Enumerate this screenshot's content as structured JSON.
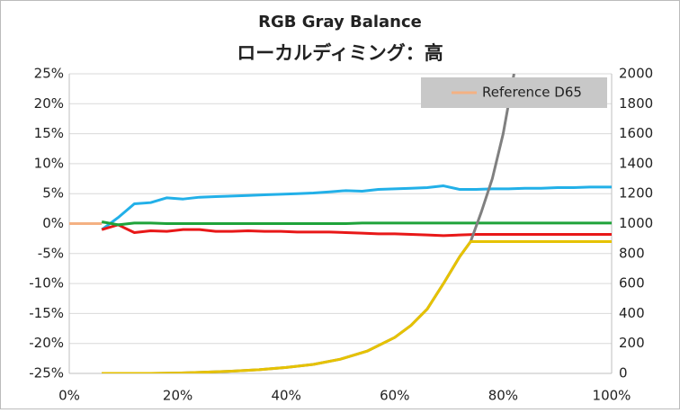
{
  "chart_data": {
    "type": "line",
    "title": "RGB Gray Balance",
    "subtitle": "ローカルディミング：高",
    "xlim": [
      0,
      100
    ],
    "xticks": [
      {
        "value": 0,
        "label": "0%"
      },
      {
        "value": 20,
        "label": "20%"
      },
      {
        "value": 40,
        "label": "40%"
      },
      {
        "value": 60,
        "label": "60%"
      },
      {
        "value": 80,
        "label": "80%"
      },
      {
        "value": 100,
        "label": "100%"
      }
    ],
    "ylim": [
      -25,
      25
    ],
    "yticks": [
      {
        "value": -25,
        "label": "-25%"
      },
      {
        "value": -20,
        "label": "-20%"
      },
      {
        "value": -15,
        "label": "-15%"
      },
      {
        "value": -10,
        "label": "-10%"
      },
      {
        "value": -5,
        "label": "-5%"
      },
      {
        "value": 0,
        "label": "0%"
      },
      {
        "value": 5,
        "label": "5%"
      },
      {
        "value": 10,
        "label": "10%"
      },
      {
        "value": 15,
        "label": "15%"
      },
      {
        "value": 20,
        "label": "20%"
      },
      {
        "value": 25,
        "label": "25%"
      }
    ],
    "y2lim": [
      0,
      2000
    ],
    "y2ticks": [
      0,
      200,
      400,
      600,
      800,
      1000,
      1200,
      1400,
      1600,
      1800,
      2000
    ],
    "grid": true,
    "legend": "top-right",
    "series": [
      {
        "name": "Reference D65",
        "color": "#f4b183",
        "x": [
          0,
          6
        ],
        "values": [
          0,
          0
        ]
      },
      {
        "color": "#22b0e8",
        "x": [
          6,
          9,
          12,
          15,
          18,
          21,
          24,
          27,
          30,
          33,
          36,
          39,
          42,
          45,
          48,
          51,
          54,
          57,
          60,
          63,
          66,
          69,
          72,
          75,
          78,
          81,
          84,
          87,
          90,
          93,
          96,
          100
        ],
        "values": [
          -1.0,
          1.0,
          3.3,
          3.5,
          4.3,
          4.1,
          4.4,
          4.5,
          4.6,
          4.7,
          4.8,
          4.9,
          5.0,
          5.1,
          5.3,
          5.5,
          5.4,
          5.7,
          5.8,
          5.9,
          6.0,
          6.3,
          5.7,
          5.7,
          5.8,
          5.8,
          5.9,
          5.9,
          6.0,
          6.0,
          6.1,
          6.1
        ]
      },
      {
        "color": "#e81818",
        "x": [
          6,
          9,
          12,
          15,
          18,
          21,
          24,
          27,
          30,
          33,
          36,
          39,
          42,
          45,
          48,
          51,
          54,
          57,
          60,
          63,
          66,
          69,
          72,
          75,
          78,
          81,
          84,
          87,
          90,
          93,
          96,
          100
        ],
        "values": [
          -1.0,
          -0.2,
          -1.5,
          -1.2,
          -1.3,
          -1.0,
          -1.0,
          -1.3,
          -1.3,
          -1.2,
          -1.3,
          -1.3,
          -1.4,
          -1.4,
          -1.4,
          -1.5,
          -1.6,
          -1.7,
          -1.7,
          -1.8,
          -1.9,
          -2.0,
          -1.9,
          -1.8,
          -1.8,
          -1.8,
          -1.8,
          -1.8,
          -1.8,
          -1.8,
          -1.8,
          -1.8
        ]
      },
      {
        "color": "#1fa33a",
        "x": [
          6,
          9,
          12,
          15,
          18,
          21,
          24,
          27,
          30,
          33,
          36,
          39,
          42,
          45,
          48,
          51,
          54,
          57,
          60,
          63,
          66,
          69,
          72,
          75,
          78,
          81,
          84,
          87,
          90,
          93,
          96,
          100
        ],
        "values": [
          0.3,
          -0.2,
          0.1,
          0.1,
          0,
          0,
          0,
          0,
          0,
          0,
          0,
          0,
          0,
          0,
          0,
          0,
          0.1,
          0.1,
          0.1,
          0.1,
          0.1,
          0.1,
          0.1,
          0.1,
          0.1,
          0.1,
          0.1,
          0.1,
          0.1,
          0.1,
          0.1,
          0.1
        ]
      },
      {
        "color": "#808080",
        "axis": "y2",
        "x": [
          6,
          10,
          15,
          20,
          25,
          30,
          35,
          40,
          45,
          50,
          55,
          60,
          63,
          66,
          69,
          72,
          74,
          76,
          78,
          80,
          82
        ],
        "values": [
          0,
          0,
          0,
          2,
          8,
          15,
          25,
          40,
          60,
          95,
          150,
          240,
          320,
          430,
          600,
          780,
          880,
          1080,
          1300,
          1600,
          2000
        ]
      },
      {
        "color": "#e6c200",
        "axis": "y2",
        "x": [
          6,
          10,
          15,
          20,
          25,
          30,
          35,
          40,
          45,
          50,
          55,
          60,
          63,
          66,
          69,
          72,
          74,
          100
        ],
        "values": [
          0,
          0,
          0,
          2,
          8,
          15,
          25,
          40,
          60,
          95,
          150,
          240,
          320,
          430,
          600,
          780,
          880,
          880
        ]
      }
    ]
  }
}
